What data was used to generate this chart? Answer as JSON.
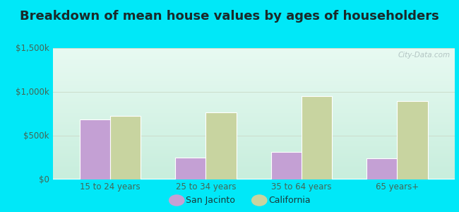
{
  "title": "Breakdown of mean house values by ages of householders",
  "categories": [
    "15 to 24 years",
    "25 to 34 years",
    "35 to 64 years",
    "65 years+"
  ],
  "san_jacinto_values": [
    680000,
    250000,
    310000,
    235000
  ],
  "california_values": [
    720000,
    760000,
    950000,
    890000
  ],
  "san_jacinto_color": "#c4a0d4",
  "california_color": "#c8d4a0",
  "bar_edge_color": "#ffffff",
  "ylim": [
    0,
    1500000
  ],
  "yticks": [
    0,
    500000,
    1000000,
    1500000
  ],
  "ytick_labels": [
    "$0",
    "$500k",
    "$1,000k",
    "$1,500k"
  ],
  "legend_labels": [
    "San Jacinto",
    "California"
  ],
  "background_outer": "#00e8f8",
  "background_inner_top": "#d8f0e8",
  "background_inner_bottom": "#e8faf0",
  "title_fontsize": 13,
  "axis_label_fontsize": 8.5,
  "legend_fontsize": 9,
  "bar_width": 0.32,
  "watermark": "City-Data.com"
}
